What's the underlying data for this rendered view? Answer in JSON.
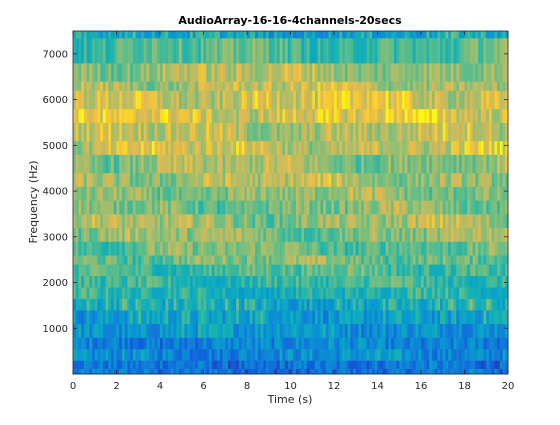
{
  "chart_data": {
    "type": "heatmap",
    "title": "AudioArray-16-16-4channels-20secs",
    "xlabel": "Time (s)",
    "ylabel": "Frequency (Hz)",
    "xlim": [
      0,
      20
    ],
    "ylim": [
      0,
      7500
    ],
    "xticks": [
      "0",
      "2",
      "4",
      "6",
      "8",
      "10",
      "12",
      "14",
      "16",
      "18",
      "20"
    ],
    "yticks": [
      "1000",
      "2000",
      "3000",
      "4000",
      "5000",
      "6000",
      "7000"
    ],
    "colormap": "parula",
    "grid": false,
    "band_edges_hz": [
      0,
      120,
      300,
      550,
      800,
      1100,
      1400,
      1650,
      1900,
      2150,
      2400,
      2600,
      2900,
      3200,
      3500,
      3800,
      4100,
      4400,
      4800,
      5100,
      5500,
      5800,
      6200,
      6400,
      6800,
      7350,
      7500
    ],
    "band_level": [
      0.3,
      0.3,
      0.42,
      0.38,
      0.48,
      0.52,
      0.58,
      0.62,
      0.66,
      0.7,
      0.76,
      0.74,
      0.78,
      0.8,
      0.76,
      0.78,
      0.82,
      0.8,
      0.86,
      0.84,
      0.9,
      0.88,
      0.84,
      0.82,
      0.7,
      0.55
    ],
    "colors": {
      "axis": "#262626",
      "background": "#ffffff"
    }
  }
}
